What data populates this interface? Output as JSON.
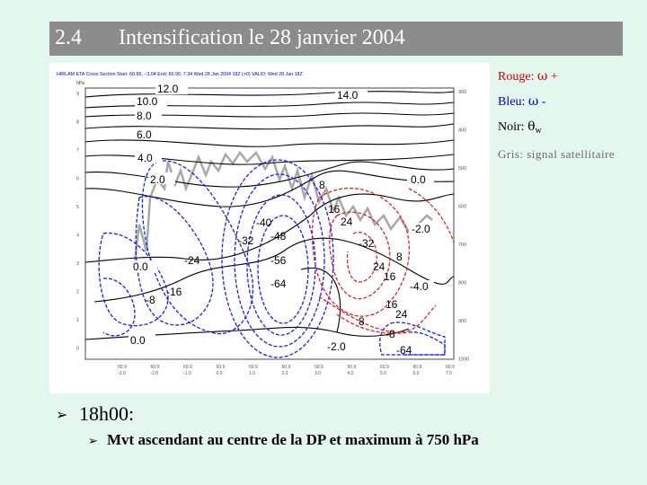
{
  "title": {
    "number": "2.4",
    "text": "Intensification le 28 janvier 2004"
  },
  "figure": {
    "header": "HIRLAM ETA Cross Section Start: 60.86, −3.04 End: 60.90, 7.34 Wed 28 Jan 2004 18Z (+0) VALID: Wed 28 Jan 18Z",
    "axis_unit": "hPa",
    "left_axis_labels": [
      "9",
      "8",
      "7",
      "6",
      "5",
      "4",
      "3",
      "2",
      "1",
      "0"
    ],
    "right_axis_labels": [
      "300",
      "400",
      "500",
      "600",
      "700",
      "800",
      "900",
      "1000"
    ],
    "bottom_axis_labels": [
      "60.9 -3.0",
      "60.9 -2.0",
      "60.9 -1.0",
      "60.9 0.0",
      "60.9 1.0",
      "60.9 2.0",
      "60.9 3.0",
      "60.9 4.0",
      "60.9 5.0",
      "60.9 6.0",
      "60.9 7.0"
    ],
    "theta_labels": [
      "12.0",
      "10.0",
      "8.0",
      "6.0",
      "4.0",
      "2.0",
      "0.0",
      "-2.0",
      "-4.0",
      "14.0",
      "0.0",
      "0.0",
      "-2.0"
    ],
    "blue_labels": [
      "-40",
      "-32",
      "-48",
      "-24",
      "-56",
      "-64",
      "-16",
      "-8",
      "-32",
      "-64",
      "-8"
    ],
    "red_labels": [
      "8",
      "16",
      "24",
      "24",
      "16",
      "8",
      "16",
      "24",
      "8"
    ]
  },
  "legend": {
    "rouge": {
      "label": "Rouge:",
      "symbol": "ω",
      "sign": "+"
    },
    "bleu": {
      "label": "Bleu:",
      "symbol": "ω",
      "sign": "-"
    },
    "noir": {
      "label": "Noir:",
      "symbol": "θ",
      "sub": "w"
    },
    "gris": {
      "label": "Gris: signal satellitaire"
    }
  },
  "bullets": [
    {
      "text": "18h00:"
    },
    {
      "text": "Mvt ascendant au centre de la DP et maximum à 750 hPa"
    }
  ],
  "colors": {
    "background": "#e3f7ee",
    "title_bar": "#8c8c8c",
    "red": "#cc0000",
    "blue": "#0000cc",
    "gray": "#6a6a6a"
  }
}
